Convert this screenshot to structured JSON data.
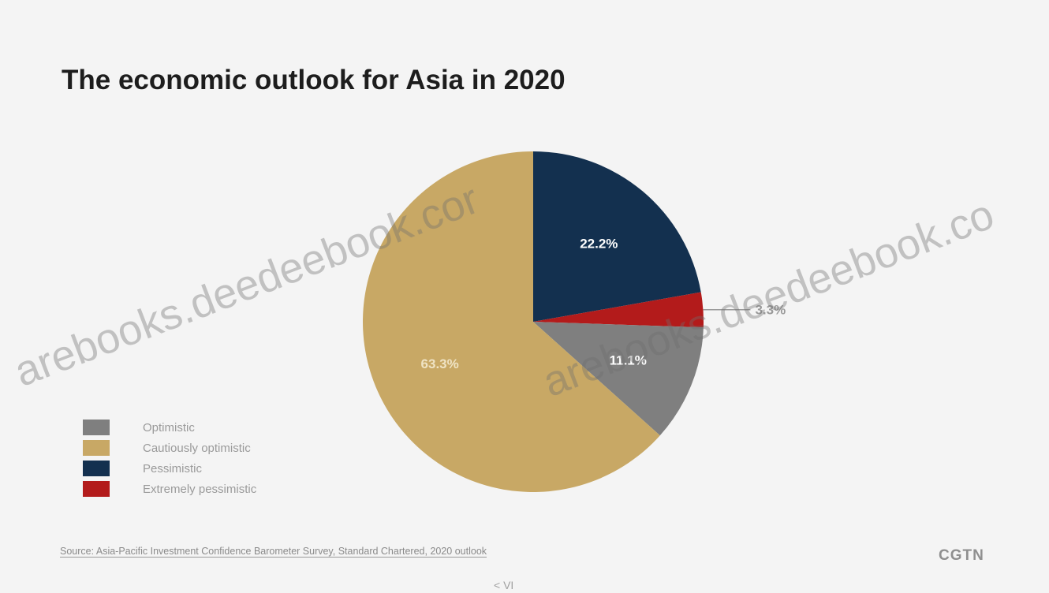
{
  "title": "The economic outlook for Asia in 2020",
  "chart_data": {
    "type": "pie",
    "title": "The economic outlook for Asia in 2020",
    "slices": [
      {
        "label": "Pessimistic",
        "value": 22.2,
        "display": "22.2%",
        "color": "#13304f"
      },
      {
        "label": "Extremely pessimistic",
        "value": 3.3,
        "display": "3.3%",
        "color": "#b31b1b"
      },
      {
        "label": "Optimistic",
        "value": 11.1,
        "display": "11.1%",
        "color": "#7f7f7f"
      },
      {
        "label": "Cautiously optimistic",
        "value": 63.3,
        "display": "63.3%",
        "color": "#c8a865"
      }
    ],
    "legend_position": "bottom-left"
  },
  "legend": [
    {
      "label": "Optimistic",
      "color": "#7f7f7f"
    },
    {
      "label": "Cautiously optimistic",
      "color": "#c8a865"
    },
    {
      "label": "Pessimistic",
      "color": "#13304f"
    },
    {
      "label": "Extremely pessimistic",
      "color": "#b31b1b"
    }
  ],
  "source": "Source: Asia-Pacific Investment Confidence Barometer Survey, Standard Chartered, 2020 outlook",
  "logo": "CGTN",
  "footer_mark": "< VI",
  "watermarks": [
    "arebooks.deedeebook.cor",
    "arebooks.deedeebook.co",
    "arebooks.deedeebook.co"
  ]
}
